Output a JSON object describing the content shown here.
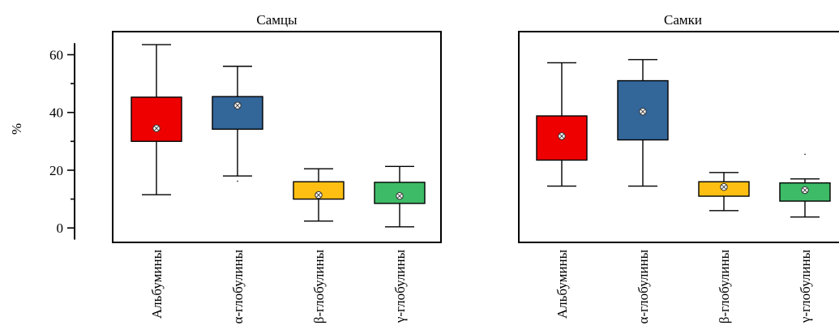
{
  "chart_data": [
    {
      "type": "boxplot",
      "title": "Самцы",
      "ylabel": "%",
      "xlabel": "",
      "ylim": [
        -5,
        68
      ],
      "yticks": [
        0,
        20,
        40,
        60
      ],
      "grid": false,
      "categories": [
        "Альбумины",
        "α-глобулины",
        "β-глобулины",
        "γ-глобулины"
      ],
      "boxes": [
        {
          "category": "Альбумины",
          "min": 11.5,
          "q1": 30,
          "q3": 45.3,
          "mean": 34.5,
          "max": 63.5,
          "outliers": [],
          "color": "#ee0000"
        },
        {
          "category": "α-глобулины",
          "min": 18,
          "q1": 34.2,
          "q3": 45.5,
          "mean": 42.4,
          "max": 56,
          "outliers": [
            16.2
          ],
          "color": "#336699"
        },
        {
          "category": "β-глобулины",
          "min": 2.4,
          "q1": 10,
          "q3": 16,
          "mean": 11.4,
          "max": 20.5,
          "outliers": [],
          "color": "#ffbf12"
        },
        {
          "category": "γ-глобулины",
          "min": 0.4,
          "q1": 8.5,
          "q3": 15.8,
          "mean": 11.1,
          "max": 21.3,
          "outliers": [],
          "color": "#3dbb66"
        }
      ]
    },
    {
      "type": "boxplot",
      "title": "Самки",
      "ylabel": "",
      "xlabel": "",
      "ylim": [
        -5,
        68
      ],
      "yticks": [],
      "grid": false,
      "categories": [
        "Альбумины",
        "α-глобулины",
        "β-глобулины",
        "γ-глобулины"
      ],
      "boxes": [
        {
          "category": "Альбумины",
          "min": 14.5,
          "q1": 23.5,
          "q3": 38.8,
          "mean": 31.8,
          "max": 57.2,
          "outliers": [],
          "color": "#ee0000"
        },
        {
          "category": "α-глобулины",
          "min": 14.5,
          "q1": 30.5,
          "q3": 51,
          "mean": 40.3,
          "max": 58.3,
          "outliers": [],
          "color": "#336699"
        },
        {
          "category": "β-глобулины",
          "min": 6,
          "q1": 11,
          "q3": 16,
          "mean": 14.2,
          "max": 19.2,
          "outliers": [],
          "color": "#ffbf12"
        },
        {
          "category": "γ-глобулины",
          "min": 3.8,
          "q1": 9.3,
          "q3": 15.6,
          "mean": 13.1,
          "max": 17,
          "outliers": [
            25.5
          ],
          "color": "#3dbb66"
        }
      ]
    }
  ]
}
